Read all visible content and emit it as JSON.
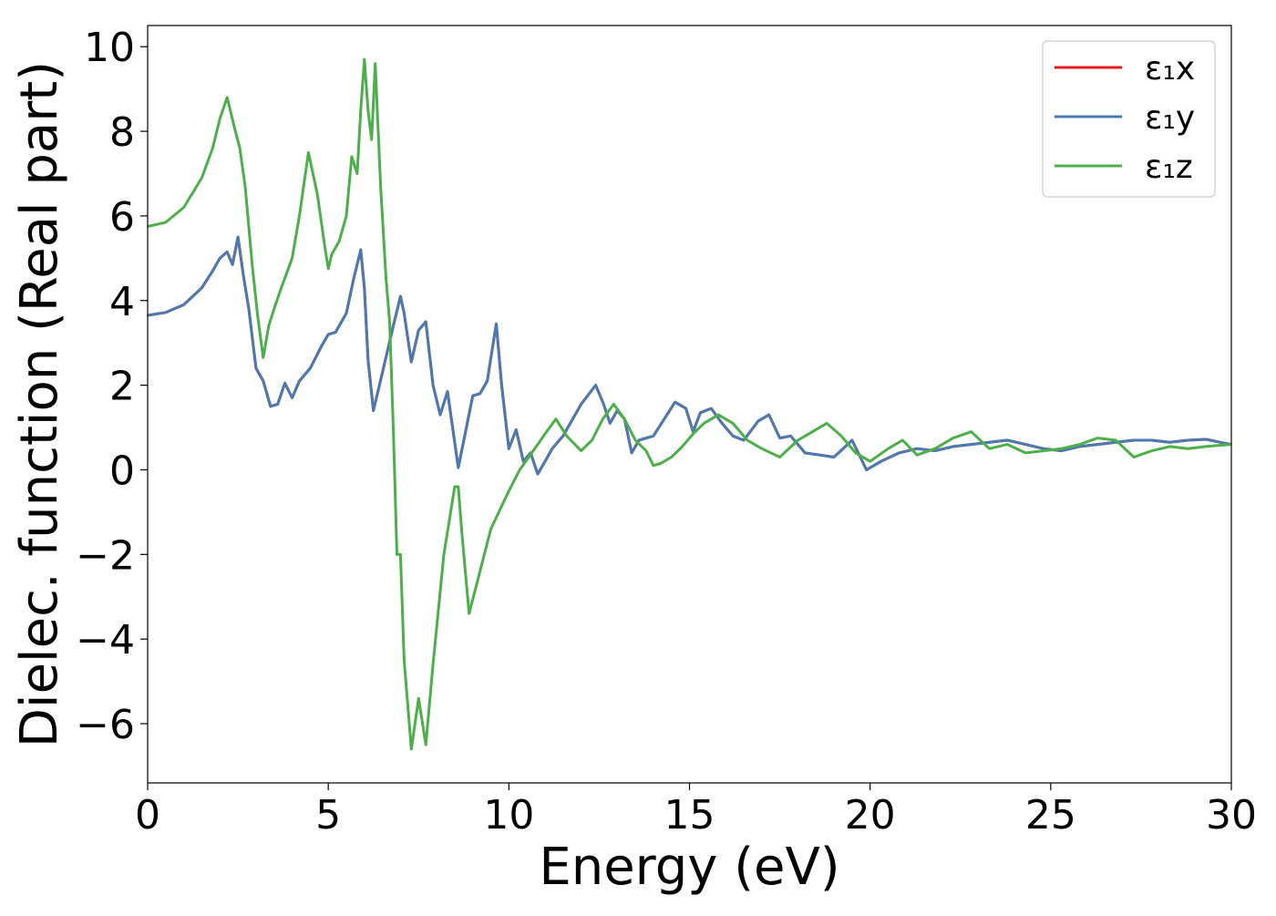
{
  "chart_data": {
    "type": "line",
    "title": "",
    "xlabel": "Energy (eV)",
    "ylabel": "Dielec. function (Real part)",
    "xlim": [
      0,
      30
    ],
    "ylim": [
      -7.4,
      10.5
    ],
    "xticks": [
      0,
      5,
      10,
      15,
      20,
      25,
      30
    ],
    "xtick_labels": [
      "0",
      "5",
      "10",
      "15",
      "20",
      "25",
      "30"
    ],
    "yticks": [
      -6,
      -4,
      -2,
      0,
      2,
      4,
      6,
      8,
      10
    ],
    "ytick_labels": [
      "−6",
      "−4",
      "−2",
      "0",
      "2",
      "4",
      "6",
      "8",
      "10"
    ],
    "grid": false,
    "legend_position": "top-right",
    "series": [
      {
        "name": "ε₁x",
        "color": "#e41a1c",
        "x": [
          0,
          0.5,
          1.0,
          1.5,
          1.8,
          2.0,
          2.2,
          2.35,
          2.5,
          2.65,
          2.8,
          3.0,
          3.2,
          3.4,
          3.6,
          3.8,
          4.0,
          4.2,
          4.5,
          4.8,
          5.0,
          5.2,
          5.5,
          5.7,
          5.9,
          6.0,
          6.1,
          6.25,
          6.5,
          6.8,
          7.0,
          7.1,
          7.3,
          7.5,
          7.7,
          7.9,
          8.1,
          8.3,
          8.6,
          8.8,
          9.0,
          9.2,
          9.4,
          9.65,
          9.8,
          10.0,
          10.2,
          10.4,
          10.6,
          10.8,
          11.0,
          11.2,
          11.5,
          12.0,
          12.4,
          12.6,
          12.8,
          13.0,
          13.2,
          13.4,
          13.6,
          14.0,
          14.3,
          14.6,
          14.9,
          15.1,
          15.3,
          15.6,
          15.9,
          16.2,
          16.5,
          16.9,
          17.2,
          17.5,
          17.8,
          18.2,
          18.6,
          19.0,
          19.5,
          19.9,
          20.3,
          20.8,
          21.3,
          21.8,
          22.3,
          22.8,
          23.3,
          23.8,
          24.3,
          24.8,
          25.3,
          25.8,
          26.3,
          26.8,
          27.3,
          27.8,
          28.3,
          28.8,
          29.3,
          29.7,
          30.0
        ],
        "y": [
          3.65,
          3.72,
          3.9,
          4.3,
          4.7,
          5.0,
          5.15,
          4.85,
          5.5,
          4.6,
          3.8,
          2.4,
          2.1,
          1.5,
          1.55,
          2.05,
          1.7,
          2.1,
          2.4,
          2.9,
          3.2,
          3.25,
          3.7,
          4.5,
          5.2,
          4.3,
          2.6,
          1.4,
          2.3,
          3.4,
          4.1,
          3.7,
          2.55,
          3.3,
          3.5,
          2.0,
          1.3,
          1.85,
          0.05,
          0.9,
          1.75,
          1.8,
          2.1,
          3.45,
          2.0,
          0.5,
          0.95,
          0.2,
          0.4,
          -0.1,
          0.2,
          0.5,
          0.8,
          1.55,
          2.0,
          1.6,
          1.1,
          1.4,
          1.2,
          0.4,
          0.7,
          0.8,
          1.2,
          1.6,
          1.45,
          0.9,
          1.35,
          1.45,
          1.1,
          0.8,
          0.7,
          1.15,
          1.3,
          0.75,
          0.8,
          0.4,
          0.35,
          0.3,
          0.7,
          0.0,
          0.2,
          0.4,
          0.5,
          0.45,
          0.55,
          0.6,
          0.65,
          0.7,
          0.6,
          0.5,
          0.45,
          0.55,
          0.6,
          0.65,
          0.7,
          0.7,
          0.65,
          0.7,
          0.72,
          0.65,
          0.6
        ]
      },
      {
        "name": "ε₁y",
        "color": "#4a7aaf",
        "x": [
          0,
          0.5,
          1.0,
          1.5,
          1.8,
          2.0,
          2.2,
          2.35,
          2.5,
          2.65,
          2.8,
          3.0,
          3.2,
          3.4,
          3.6,
          3.8,
          4.0,
          4.2,
          4.5,
          4.8,
          5.0,
          5.2,
          5.5,
          5.7,
          5.9,
          6.0,
          6.1,
          6.25,
          6.5,
          6.8,
          7.0,
          7.1,
          7.3,
          7.5,
          7.7,
          7.9,
          8.1,
          8.3,
          8.6,
          8.8,
          9.0,
          9.2,
          9.4,
          9.65,
          9.8,
          10.0,
          10.2,
          10.4,
          10.6,
          10.8,
          11.0,
          11.2,
          11.5,
          12.0,
          12.4,
          12.6,
          12.8,
          13.0,
          13.2,
          13.4,
          13.6,
          14.0,
          14.3,
          14.6,
          14.9,
          15.1,
          15.3,
          15.6,
          15.9,
          16.2,
          16.5,
          16.9,
          17.2,
          17.5,
          17.8,
          18.2,
          18.6,
          19.0,
          19.5,
          19.9,
          20.3,
          20.8,
          21.3,
          21.8,
          22.3,
          22.8,
          23.3,
          23.8,
          24.3,
          24.8,
          25.3,
          25.8,
          26.3,
          26.8,
          27.3,
          27.8,
          28.3,
          28.8,
          29.3,
          29.7,
          30.0
        ],
        "y": [
          3.65,
          3.72,
          3.9,
          4.3,
          4.7,
          5.0,
          5.15,
          4.85,
          5.5,
          4.6,
          3.8,
          2.4,
          2.1,
          1.5,
          1.55,
          2.05,
          1.7,
          2.1,
          2.4,
          2.9,
          3.2,
          3.25,
          3.7,
          4.5,
          5.2,
          4.3,
          2.6,
          1.4,
          2.3,
          3.4,
          4.1,
          3.7,
          2.55,
          3.3,
          3.5,
          2.0,
          1.3,
          1.85,
          0.05,
          0.9,
          1.75,
          1.8,
          2.1,
          3.45,
          2.0,
          0.5,
          0.95,
          0.2,
          0.4,
          -0.1,
          0.2,
          0.5,
          0.8,
          1.55,
          2.0,
          1.6,
          1.1,
          1.4,
          1.2,
          0.4,
          0.7,
          0.8,
          1.2,
          1.6,
          1.45,
          0.9,
          1.35,
          1.45,
          1.1,
          0.8,
          0.7,
          1.15,
          1.3,
          0.75,
          0.8,
          0.4,
          0.35,
          0.3,
          0.7,
          0.0,
          0.2,
          0.4,
          0.5,
          0.45,
          0.55,
          0.6,
          0.65,
          0.7,
          0.6,
          0.5,
          0.45,
          0.55,
          0.6,
          0.65,
          0.7,
          0.7,
          0.65,
          0.7,
          0.72,
          0.65,
          0.6
        ]
      },
      {
        "name": "ε₁z",
        "color": "#4daf4a",
        "x": [
          0,
          0.5,
          1.0,
          1.5,
          1.8,
          2.0,
          2.2,
          2.4,
          2.55,
          2.7,
          2.9,
          3.05,
          3.2,
          3.35,
          3.5,
          3.7,
          4.0,
          4.2,
          4.45,
          4.7,
          4.9,
          5.0,
          5.1,
          5.3,
          5.5,
          5.65,
          5.8,
          5.9,
          6.0,
          6.1,
          6.2,
          6.3,
          6.45,
          6.6,
          6.7,
          6.8,
          6.9,
          7.0,
          7.1,
          7.3,
          7.5,
          7.7,
          7.9,
          8.2,
          8.5,
          8.6,
          8.7,
          8.9,
          9.2,
          9.5,
          10.0,
          10.3,
          10.8,
          11.0,
          11.3,
          11.6,
          12.0,
          12.3,
          12.6,
          12.9,
          13.2,
          13.5,
          13.8,
          14.0,
          14.2,
          14.5,
          14.8,
          15.1,
          15.4,
          15.8,
          16.2,
          16.6,
          17.0,
          17.5,
          18.0,
          18.4,
          18.8,
          19.2,
          19.6,
          20.0,
          20.5,
          20.9,
          21.3,
          21.8,
          22.3,
          22.8,
          23.3,
          23.8,
          24.3,
          24.8,
          25.3,
          25.8,
          26.3,
          26.8,
          27.3,
          27.8,
          28.3,
          28.8,
          29.3,
          29.7,
          30.0
        ],
        "y": [
          5.75,
          5.85,
          6.2,
          6.9,
          7.6,
          8.3,
          8.8,
          8.1,
          7.6,
          6.7,
          4.8,
          3.6,
          2.65,
          3.4,
          3.8,
          4.3,
          5.0,
          6.0,
          7.5,
          6.5,
          5.3,
          4.75,
          5.1,
          5.4,
          6.0,
          7.4,
          7.0,
          8.5,
          9.7,
          8.5,
          7.8,
          9.6,
          6.7,
          4.5,
          3.5,
          1.0,
          -2.0,
          -2.0,
          -4.5,
          -6.6,
          -5.4,
          -6.5,
          -4.6,
          -2.0,
          -0.4,
          -0.4,
          -1.5,
          -3.4,
          -2.4,
          -1.4,
          -0.5,
          0.0,
          0.6,
          0.85,
          1.2,
          0.8,
          0.45,
          0.7,
          1.2,
          1.55,
          1.2,
          0.7,
          0.45,
          0.1,
          0.15,
          0.3,
          0.55,
          0.85,
          1.1,
          1.3,
          1.1,
          0.7,
          0.5,
          0.3,
          0.7,
          0.9,
          1.1,
          0.8,
          0.4,
          0.2,
          0.5,
          0.7,
          0.35,
          0.5,
          0.75,
          0.9,
          0.5,
          0.6,
          0.4,
          0.45,
          0.5,
          0.6,
          0.75,
          0.7,
          0.3,
          0.45,
          0.55,
          0.5,
          0.55,
          0.58,
          0.6
        ]
      }
    ]
  }
}
